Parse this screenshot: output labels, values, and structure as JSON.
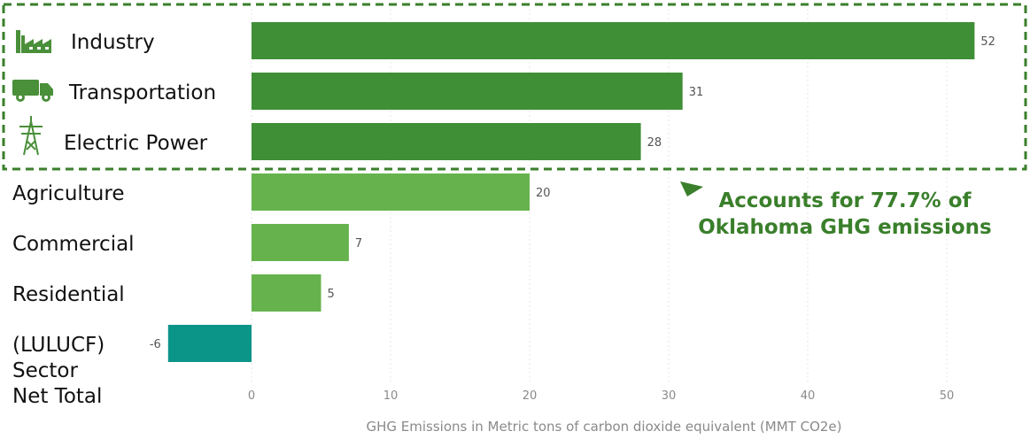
{
  "chart_data": {
    "type": "bar",
    "orientation": "horizontal",
    "categories": [
      "Industry",
      "Transportation",
      "Electric Power",
      "Agriculture",
      "Commercial",
      "Residential",
      "(LULUCF) Sector Net Total"
    ],
    "category_lines": [
      [
        "Industry"
      ],
      [
        "Transportation"
      ],
      [
        "Electric Power"
      ],
      [
        "Agriculture"
      ],
      [
        "Commercial"
      ],
      [
        "Residential"
      ],
      [
        "(LULUCF)",
        "Sector",
        "Net Total"
      ]
    ],
    "values": [
      52,
      31,
      28,
      20,
      7,
      5,
      -6
    ],
    "value_labels": [
      "52",
      "31",
      "28",
      "20",
      "7",
      "5",
      "-6"
    ],
    "colors": [
      "#3f8f36",
      "#3f8f36",
      "#3f8f36",
      "#66b34d",
      "#66b34d",
      "#66b34d",
      "#0b9488"
    ],
    "icons": [
      "factory-icon",
      "truck-icon",
      "power-tower-icon",
      null,
      null,
      null,
      null
    ],
    "xlabel": "GHG Emissions in Metric tons of carbon dioxide equivalent (MMT CO2e)",
    "xlim": [
      -7,
      55
    ],
    "xticks": [
      0,
      10,
      20,
      30,
      40,
      50
    ],
    "grid": true,
    "highlight": {
      "categories": [
        "Industry",
        "Transportation",
        "Electric Power"
      ],
      "border_color": "#3a7f2b",
      "note_lines": [
        "Accounts for 77.7% of",
        "Oklahoma GHG emissions"
      ]
    }
  }
}
